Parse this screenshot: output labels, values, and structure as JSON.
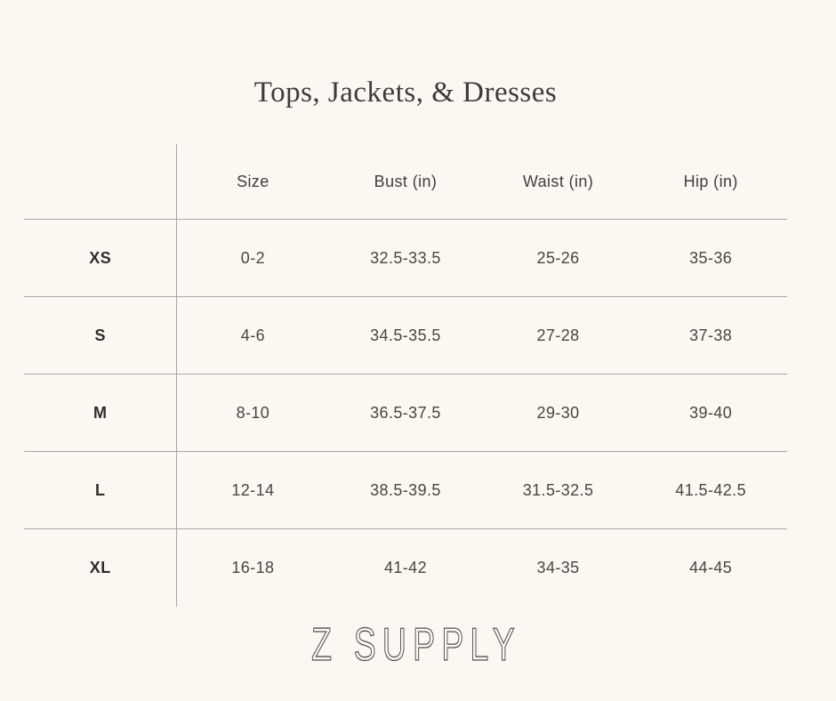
{
  "page": {
    "background_color": "#FAF8F1",
    "line_color": "#A9A7A3"
  },
  "title": "Tops, Jackets, & Dresses",
  "table": {
    "columns": [
      "Size",
      "Bust (in)",
      "Waist (in)",
      "Hip (in)"
    ],
    "rows": [
      {
        "size_label": "XS",
        "size": "0-2",
        "bust": "32.5-33.5",
        "waist": "25-26",
        "hip": "35-36"
      },
      {
        "size_label": "S",
        "size": "4-6",
        "bust": "34.5-35.5",
        "waist": "27-28",
        "hip": "37-38"
      },
      {
        "size_label": "M",
        "size": "8-10",
        "bust": "36.5-37.5",
        "waist": "29-30",
        "hip": "39-40"
      },
      {
        "size_label": "L",
        "size": "12-14",
        "bust": "38.5-39.5",
        "waist": "31.5-32.5",
        "hip": "41.5-42.5"
      },
      {
        "size_label": "XL",
        "size": "16-18",
        "bust": "41-42",
        "waist": "34-35",
        "hip": "44-45"
      }
    ]
  },
  "brand": {
    "logo_text": "Z SUPPLY"
  }
}
